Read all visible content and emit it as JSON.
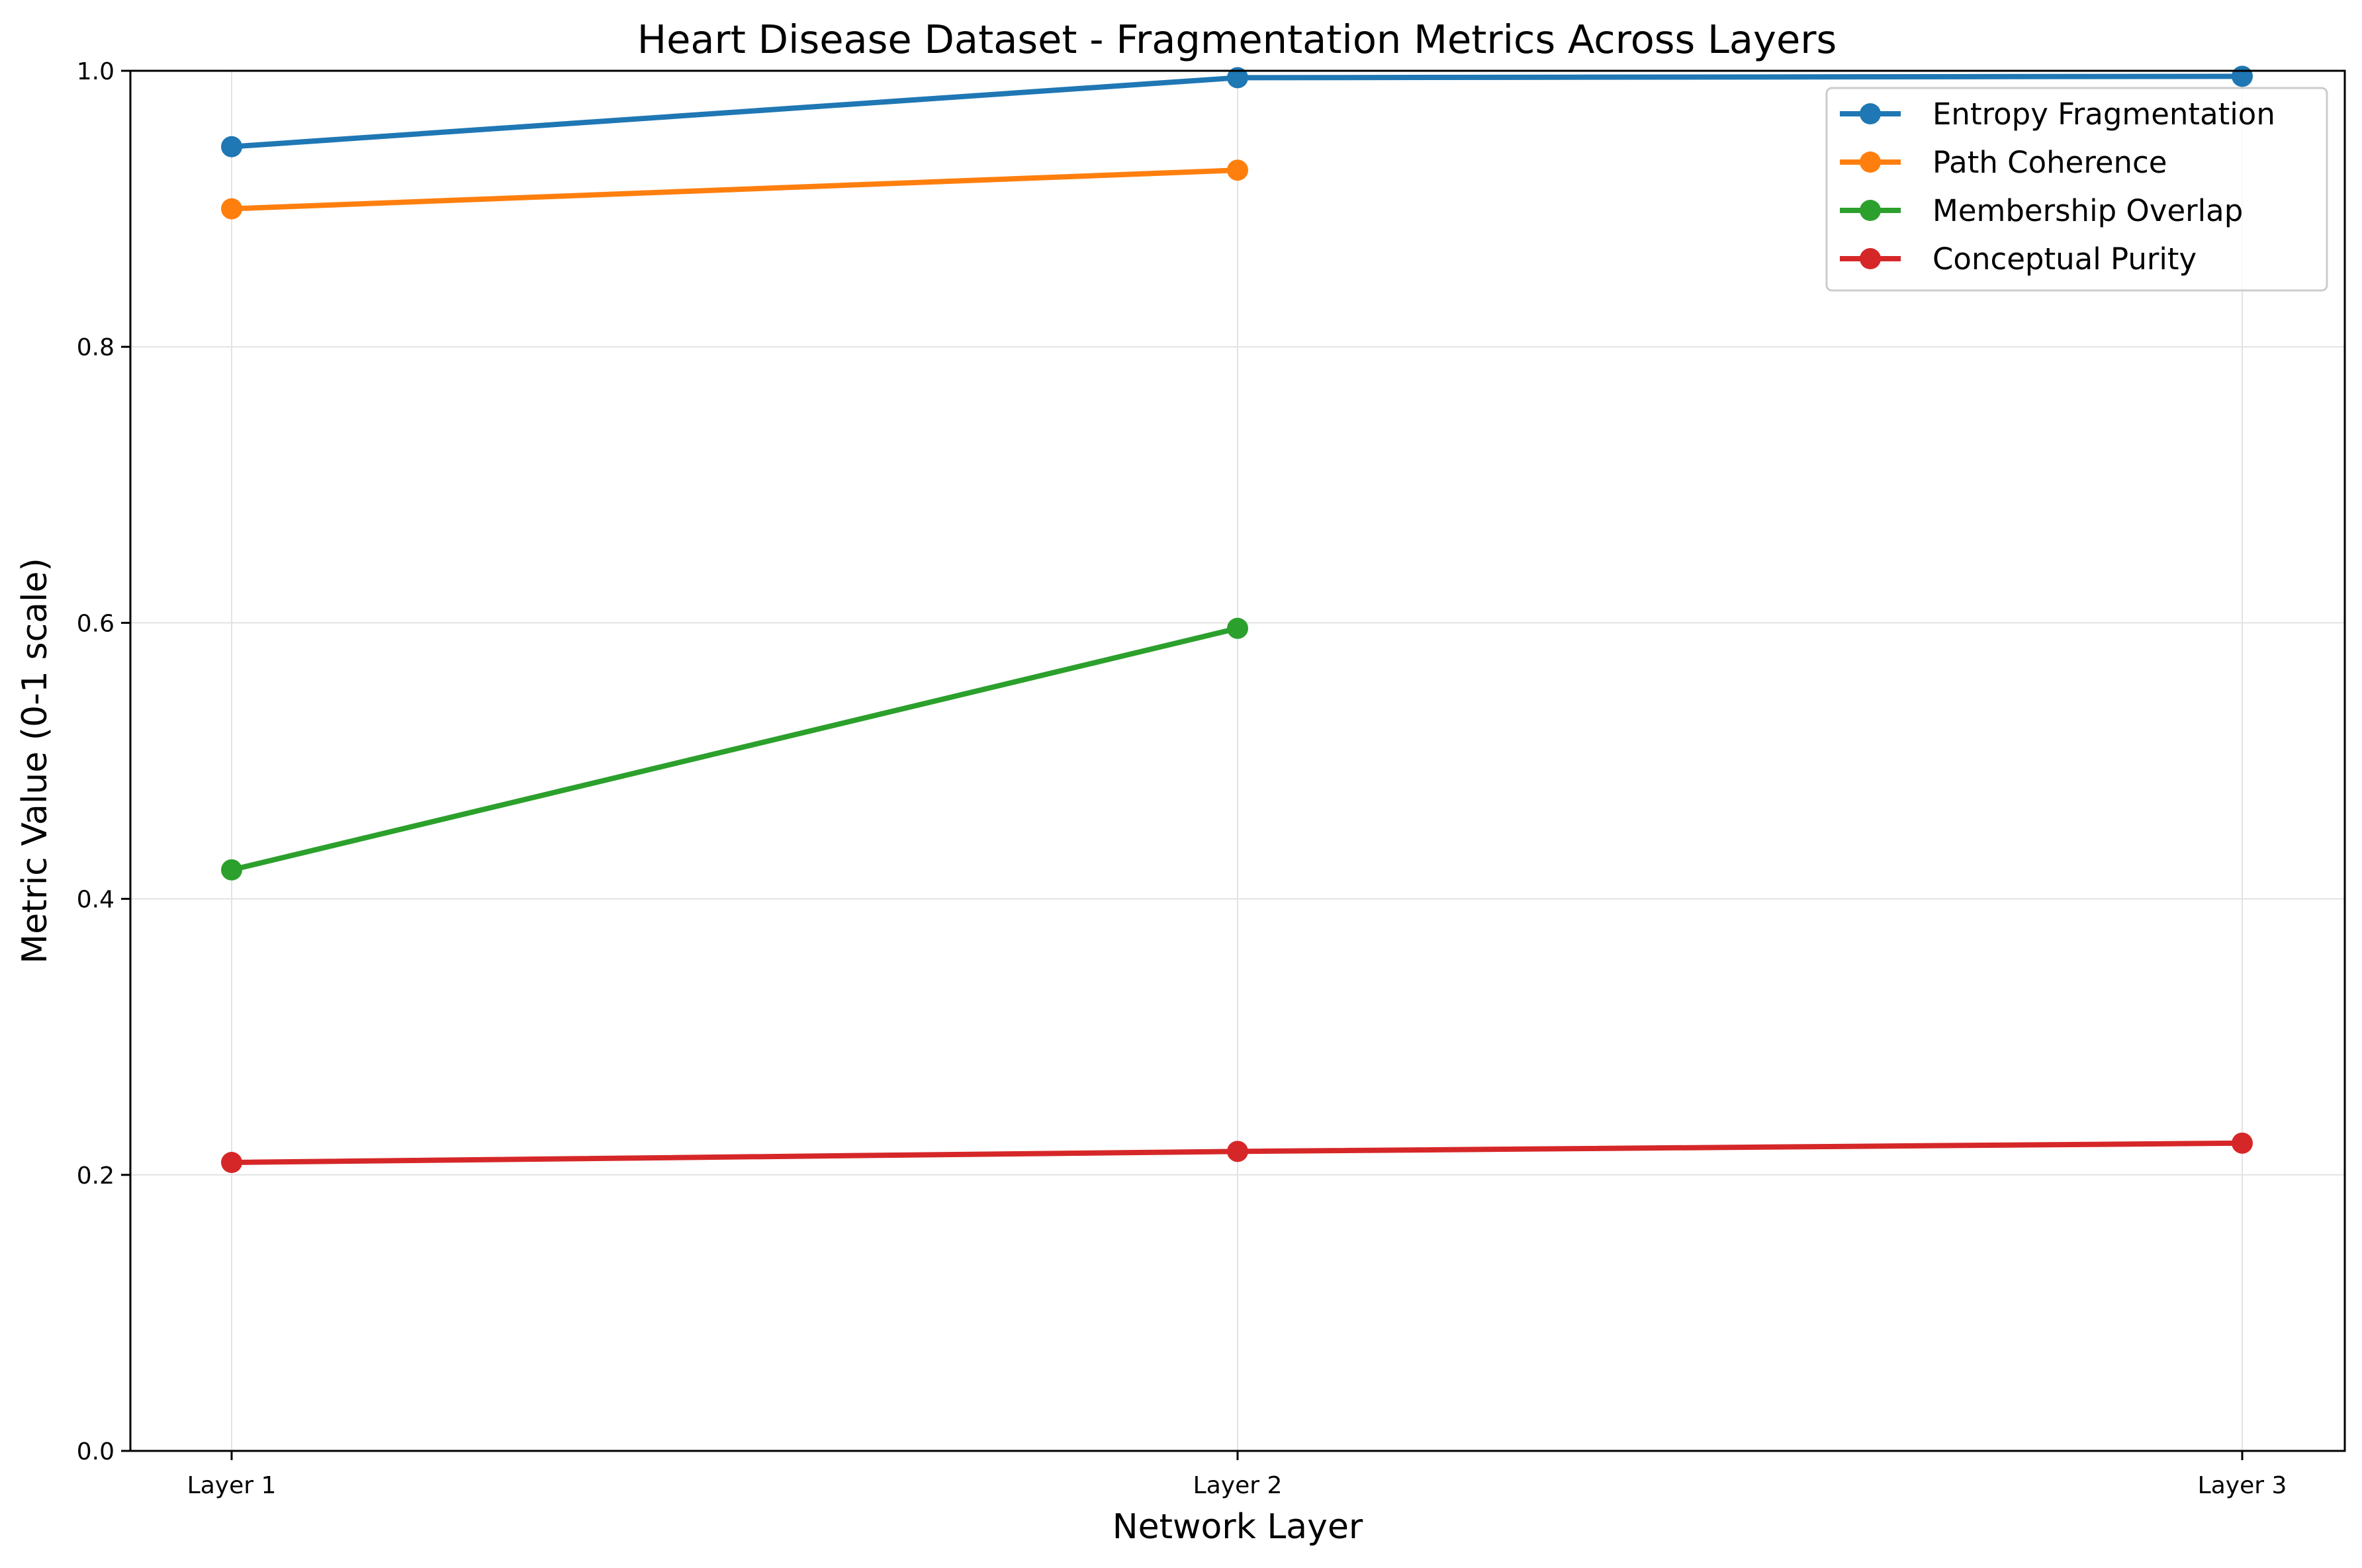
{
  "chart_data": {
    "type": "line",
    "title": "Heart Disease Dataset - Fragmentation Metrics Across Layers",
    "xlabel": "Network Layer",
    "ylabel": "Metric Value (0-1 scale)",
    "categories": [
      "Layer 1",
      "Layer 2",
      "Layer 3"
    ],
    "ylim": [
      0,
      1
    ],
    "yticks": [
      "0.0",
      "0.2",
      "0.4",
      "0.6",
      "0.8",
      "1.0"
    ],
    "grid": true,
    "legend_position": "top-right",
    "series": [
      {
        "name": "Entropy Fragmentation",
        "color": "#1f77b4",
        "values": [
          0.945,
          0.995,
          0.996
        ]
      },
      {
        "name": "Path Coherence",
        "color": "#ff7f0e",
        "values": [
          0.9,
          0.928,
          null
        ]
      },
      {
        "name": "Membership Overlap",
        "color": "#2ca02c",
        "values": [
          0.421,
          0.596,
          null
        ]
      },
      {
        "name": "Conceptual Purity",
        "color": "#d62728",
        "values": [
          0.209,
          0.217,
          0.223
        ]
      }
    ]
  }
}
